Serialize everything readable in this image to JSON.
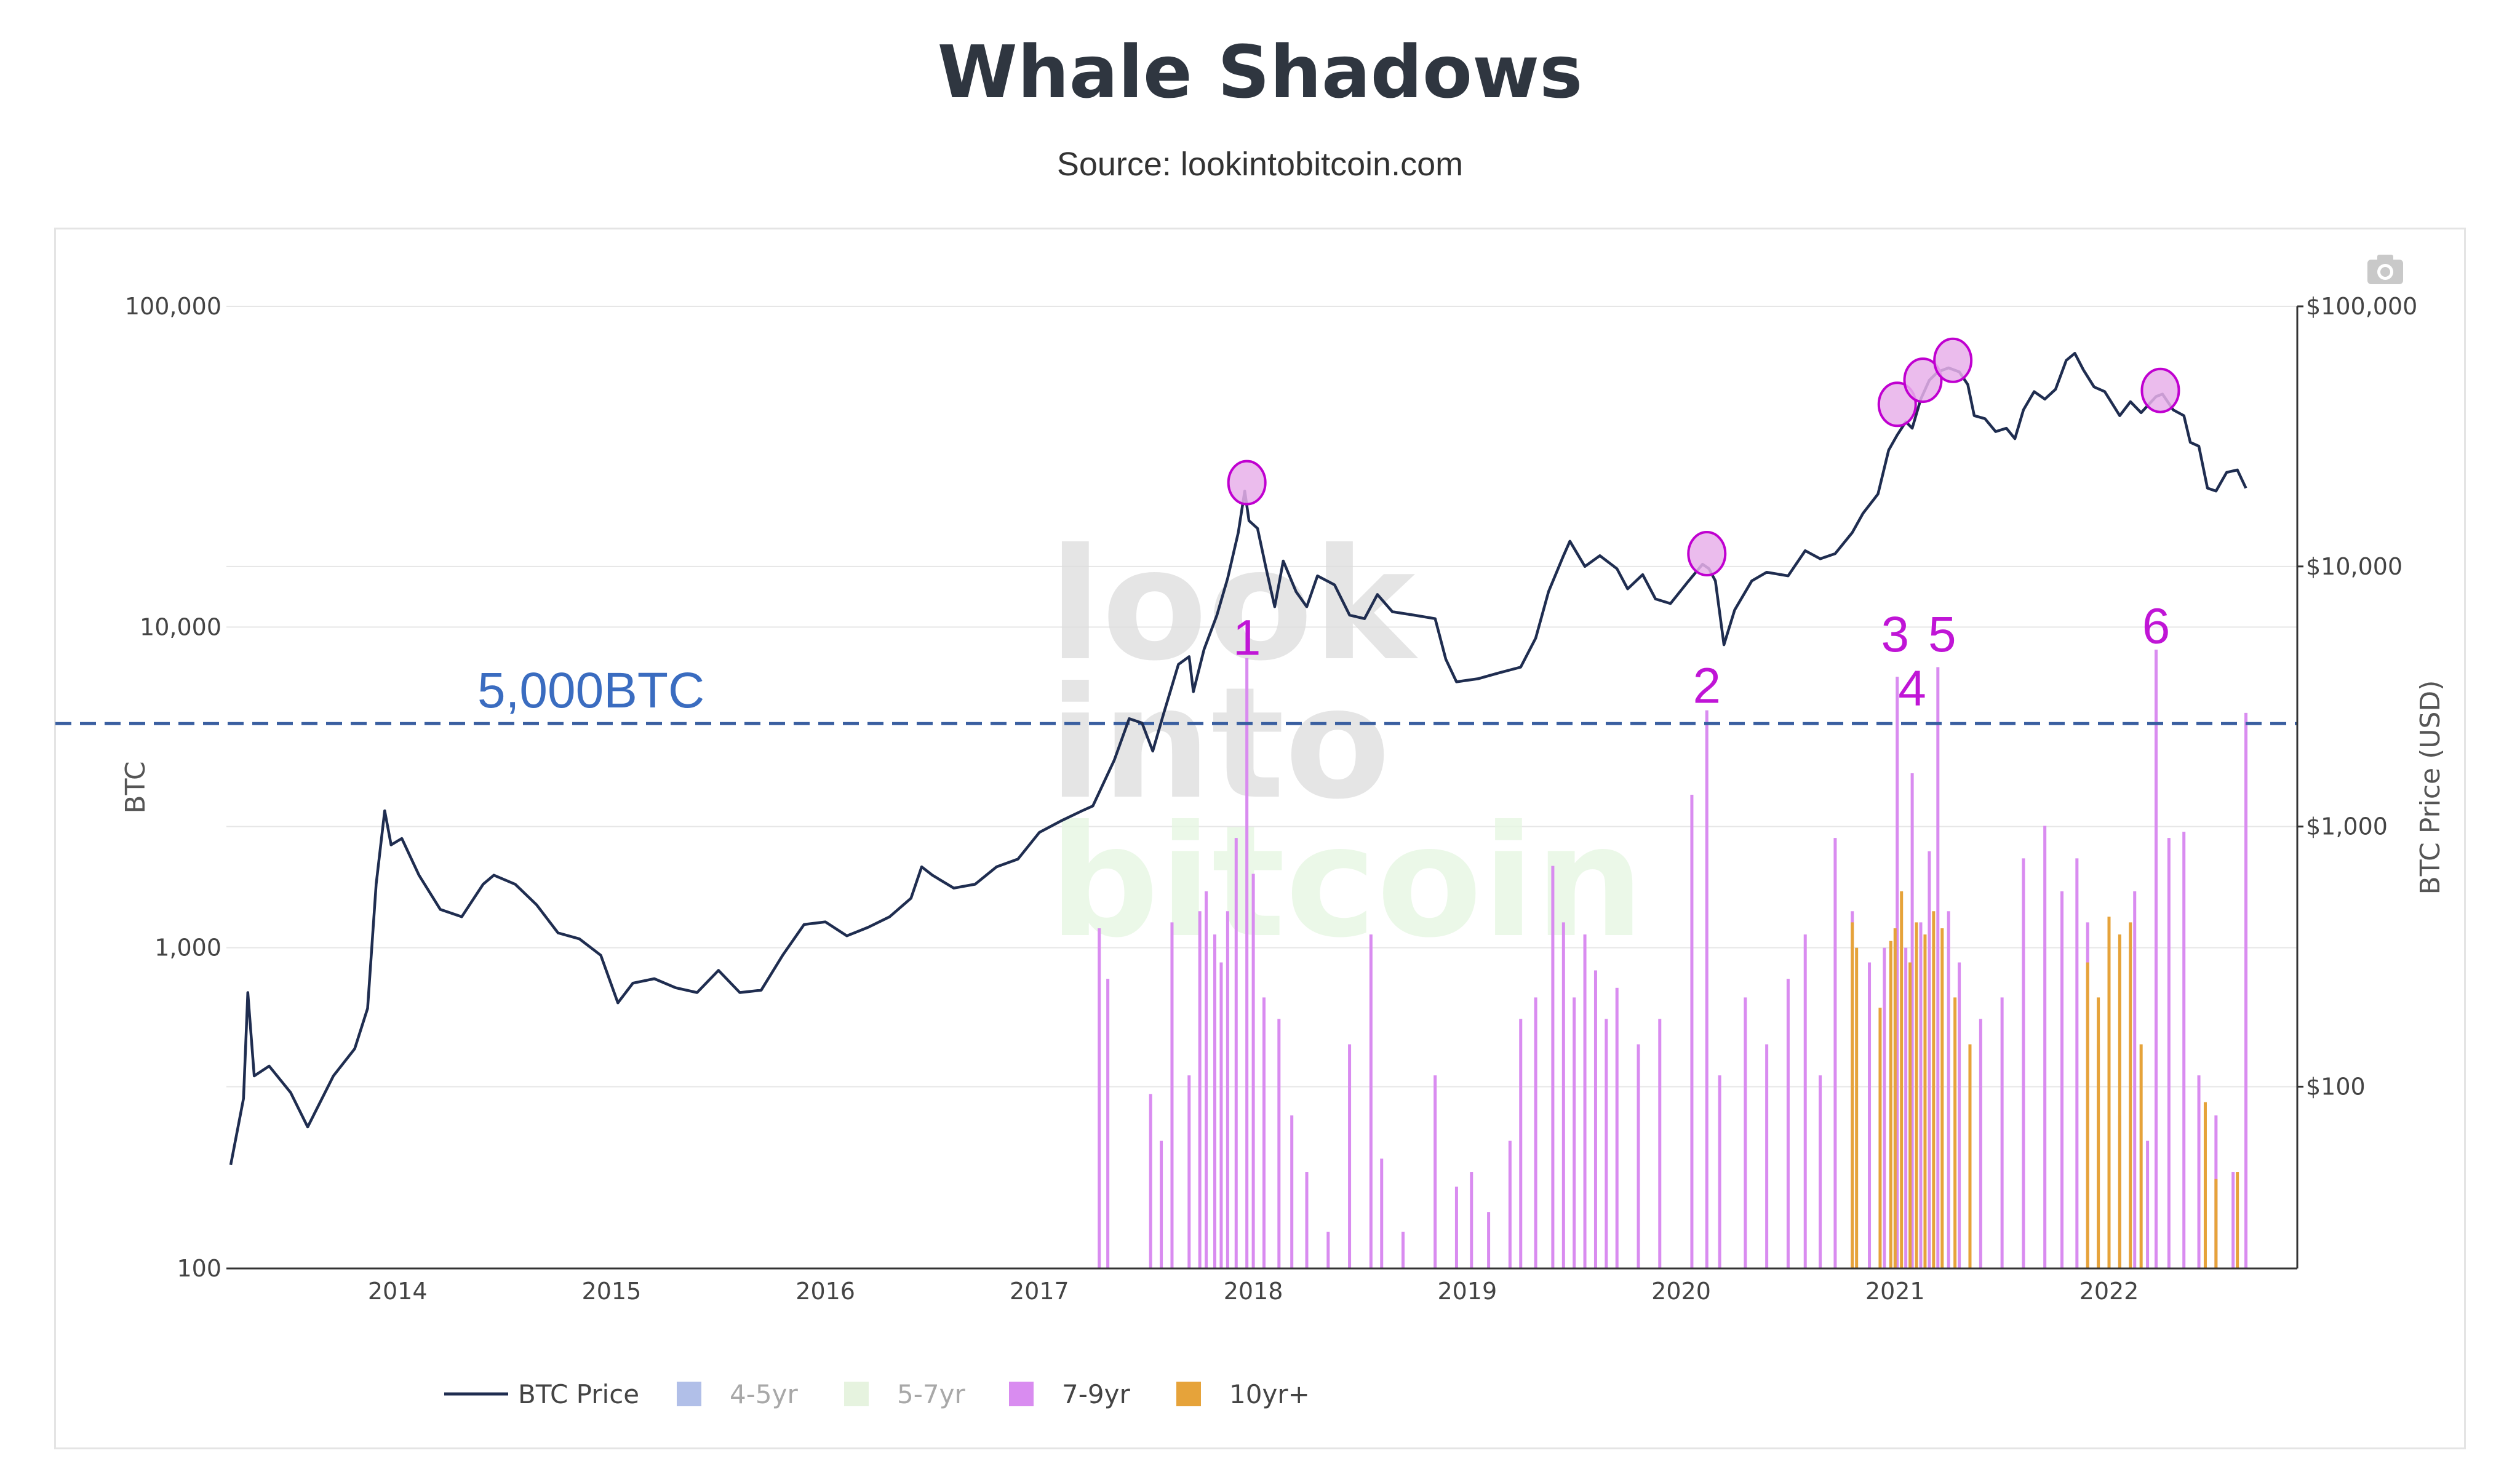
{
  "title": "Whale Shadows",
  "subtitle": "Source: lookintobitcoin.com",
  "colors": {
    "price_line": "#1f2d50",
    "threshold": "#3a5fa0",
    "s45": "#9fb1e3",
    "s57": "#e3f2dc",
    "s79": "#d98cf0",
    "s10": "#e6a33a",
    "marker": "#c000d0",
    "marker_fill": "#e8b0ea",
    "grid": "#e6e6e6",
    "axis": "#333333"
  },
  "icons": {
    "camera": "camera-icon"
  },
  "watermark": [
    "look",
    "into",
    "bitcoin"
  ],
  "chart_data": {
    "type": "line",
    "title": "Whale Shadows",
    "subtitle": "Source: lookintobitcoin.com",
    "y_left": {
      "label": "BTC",
      "scale": "log",
      "range": [
        100,
        100000
      ],
      "ticks": [
        {
          "v": 100,
          "label": "100"
        },
        {
          "v": 1000,
          "label": "1,000"
        },
        {
          "v": 10000,
          "label": "10,000"
        },
        {
          "v": 100000,
          "label": "100,000"
        }
      ]
    },
    "y_right": {
      "label": "BTC Price (USD)",
      "scale": "log",
      "range": [
        20,
        100000
      ],
      "ticks": [
        {
          "v": 100,
          "label": "$100"
        },
        {
          "v": 1000,
          "label": "$1,000"
        },
        {
          "v": 10000,
          "label": "$10,000"
        },
        {
          "v": 100000,
          "label": "$100,000"
        }
      ]
    },
    "x_axis": {
      "range": [
        2013.2,
        2022.88
      ],
      "ticks": [
        {
          "v": 2014,
          "label": "2014"
        },
        {
          "v": 2015,
          "label": "2015"
        },
        {
          "v": 2016,
          "label": "2016"
        },
        {
          "v": 2017,
          "label": "2017"
        },
        {
          "v": 2018,
          "label": "2018"
        },
        {
          "v": 2019,
          "label": "2019"
        },
        {
          "v": 2020,
          "label": "2020"
        },
        {
          "v": 2021,
          "label": "2021"
        },
        {
          "v": 2022,
          "label": "2022"
        }
      ]
    },
    "threshold": {
      "value": 5000,
      "label": "5,000BTC"
    },
    "legend": {
      "placement": "bottom",
      "items": [
        {
          "label": "BTC Price",
          "kind": "line",
          "color": "#1f2d50",
          "active": true
        },
        {
          "label": "4-5yr",
          "kind": "box",
          "color": "#a9b8e6",
          "active": false
        },
        {
          "label": "5-7yr",
          "kind": "box",
          "color": "#e3f2dc",
          "active": false
        },
        {
          "label": "7-9yr",
          "kind": "box",
          "color": "#d98cf0",
          "active": true
        },
        {
          "label": "10yr+",
          "kind": "box",
          "color": "#e6a33a",
          "active": true
        }
      ]
    },
    "series": [
      {
        "name": "BTC Price",
        "axis": "right",
        "points": [
          [
            2013.22,
            50
          ],
          [
            2013.28,
            90
          ],
          [
            2013.3,
            230
          ],
          [
            2013.33,
            110
          ],
          [
            2013.4,
            120
          ],
          [
            2013.5,
            95
          ],
          [
            2013.58,
            70
          ],
          [
            2013.7,
            110
          ],
          [
            2013.8,
            140
          ],
          [
            2013.86,
            200
          ],
          [
            2013.9,
            600
          ],
          [
            2013.94,
            1150
          ],
          [
            2013.97,
            850
          ],
          [
            2014.02,
            900
          ],
          [
            2014.1,
            650
          ],
          [
            2014.2,
            480
          ],
          [
            2014.3,
            450
          ],
          [
            2014.4,
            600
          ],
          [
            2014.45,
            650
          ],
          [
            2014.55,
            600
          ],
          [
            2014.65,
            500
          ],
          [
            2014.75,
            390
          ],
          [
            2014.85,
            370
          ],
          [
            2014.95,
            320
          ],
          [
            2015.03,
            210
          ],
          [
            2015.1,
            250
          ],
          [
            2015.2,
            260
          ],
          [
            2015.3,
            240
          ],
          [
            2015.4,
            230
          ],
          [
            2015.5,
            280
          ],
          [
            2015.6,
            230
          ],
          [
            2015.7,
            235
          ],
          [
            2015.8,
            320
          ],
          [
            2015.9,
            420
          ],
          [
            2016.0,
            430
          ],
          [
            2016.1,
            380
          ],
          [
            2016.2,
            410
          ],
          [
            2016.3,
            450
          ],
          [
            2016.4,
            530
          ],
          [
            2016.45,
            700
          ],
          [
            2016.5,
            650
          ],
          [
            2016.6,
            580
          ],
          [
            2016.7,
            600
          ],
          [
            2016.8,
            700
          ],
          [
            2016.9,
            750
          ],
          [
            2017.0,
            950
          ],
          [
            2017.1,
            1050
          ],
          [
            2017.2,
            1150
          ],
          [
            2017.25,
            1200
          ],
          [
            2017.35,
            1800
          ],
          [
            2017.42,
            2600
          ],
          [
            2017.48,
            2500
          ],
          [
            2017.53,
            1950
          ],
          [
            2017.58,
            2700
          ],
          [
            2017.65,
            4200
          ],
          [
            2017.7,
            4500
          ],
          [
            2017.72,
            3300
          ],
          [
            2017.77,
            4800
          ],
          [
            2017.83,
            6500
          ],
          [
            2017.88,
            9000
          ],
          [
            2017.93,
            13500
          ],
          [
            2017.96,
            19500
          ],
          [
            2017.98,
            15000
          ],
          [
            2018.02,
            14000
          ],
          [
            2018.06,
            9800
          ],
          [
            2018.1,
            7000
          ],
          [
            2018.14,
            10500
          ],
          [
            2018.2,
            8000
          ],
          [
            2018.25,
            7000
          ],
          [
            2018.3,
            9200
          ],
          [
            2018.38,
            8500
          ],
          [
            2018.45,
            6500
          ],
          [
            2018.52,
            6300
          ],
          [
            2018.58,
            7800
          ],
          [
            2018.65,
            6700
          ],
          [
            2018.75,
            6500
          ],
          [
            2018.85,
            6300
          ],
          [
            2018.9,
            4400
          ],
          [
            2018.95,
            3600
          ],
          [
            2019.05,
            3700
          ],
          [
            2019.15,
            3900
          ],
          [
            2019.25,
            4100
          ],
          [
            2019.32,
            5300
          ],
          [
            2019.38,
            8000
          ],
          [
            2019.45,
            11000
          ],
          [
            2019.48,
            12500
          ],
          [
            2019.55,
            10000
          ],
          [
            2019.62,
            11000
          ],
          [
            2019.7,
            9800
          ],
          [
            2019.75,
            8200
          ],
          [
            2019.82,
            9300
          ],
          [
            2019.88,
            7500
          ],
          [
            2019.95,
            7200
          ],
          [
            2020.03,
            8700
          ],
          [
            2020.1,
            10200
          ],
          [
            2020.13,
            9800
          ],
          [
            2020.16,
            8800
          ],
          [
            2020.2,
            5000
          ],
          [
            2020.25,
            6800
          ],
          [
            2020.33,
            8800
          ],
          [
            2020.4,
            9500
          ],
          [
            2020.5,
            9200
          ],
          [
            2020.58,
            11500
          ],
          [
            2020.65,
            10700
          ],
          [
            2020.72,
            11200
          ],
          [
            2020.8,
            13500
          ],
          [
            2020.85,
            16000
          ],
          [
            2020.92,
            19000
          ],
          [
            2020.97,
            28000
          ],
          [
            2021.01,
            32000
          ],
          [
            2021.05,
            36000
          ],
          [
            2021.08,
            34000
          ],
          [
            2021.12,
            44000
          ],
          [
            2021.16,
            52000
          ],
          [
            2021.2,
            56000
          ],
          [
            2021.25,
            58000
          ],
          [
            2021.3,
            56000
          ],
          [
            2021.34,
            50000
          ],
          [
            2021.37,
            38000
          ],
          [
            2021.42,
            37000
          ],
          [
            2021.47,
            33000
          ],
          [
            2021.52,
            34000
          ],
          [
            2021.56,
            31000
          ],
          [
            2021.6,
            40000
          ],
          [
            2021.65,
            47000
          ],
          [
            2021.7,
            44000
          ],
          [
            2021.75,
            48000
          ],
          [
            2021.8,
            62000
          ],
          [
            2021.84,
            66000
          ],
          [
            2021.88,
            57000
          ],
          [
            2021.93,
            49000
          ],
          [
            2021.98,
            47000
          ],
          [
            2022.05,
            38000
          ],
          [
            2022.1,
            43000
          ],
          [
            2022.15,
            39000
          ],
          [
            2022.22,
            45000
          ],
          [
            2022.25,
            46000
          ],
          [
            2022.3,
            40000
          ],
          [
            2022.35,
            38000
          ],
          [
            2022.38,
            30000
          ],
          [
            2022.42,
            29000
          ],
          [
            2022.46,
            20000
          ],
          [
            2022.5,
            19500
          ],
          [
            2022.55,
            23000
          ],
          [
            2022.6,
            23500
          ],
          [
            2022.64,
            20000
          ]
        ]
      },
      {
        "name": "7-9yr",
        "axis": "left",
        "bars": [
          [
            2017.28,
            1150
          ],
          [
            2017.32,
            800
          ],
          [
            2017.52,
            350
          ],
          [
            2017.57,
            250
          ],
          [
            2017.62,
            1200
          ],
          [
            2017.7,
            400
          ],
          [
            2017.75,
            1300
          ],
          [
            2017.78,
            1500
          ],
          [
            2017.82,
            1100
          ],
          [
            2017.85,
            900
          ],
          [
            2017.88,
            1300
          ],
          [
            2017.92,
            2200
          ],
          [
            2017.97,
            8000
          ],
          [
            2018.0,
            1700
          ],
          [
            2018.05,
            700
          ],
          [
            2018.12,
            600
          ],
          [
            2018.18,
            300
          ],
          [
            2018.25,
            200
          ],
          [
            2018.35,
            130
          ],
          [
            2018.45,
            500
          ],
          [
            2018.55,
            1100
          ],
          [
            2018.6,
            220
          ],
          [
            2018.7,
            130
          ],
          [
            2018.85,
            400
          ],
          [
            2018.95,
            180
          ],
          [
            2019.02,
            200
          ],
          [
            2019.1,
            150
          ],
          [
            2019.2,
            250
          ],
          [
            2019.25,
            600
          ],
          [
            2019.32,
            700
          ],
          [
            2019.4,
            1800
          ],
          [
            2019.45,
            1200
          ],
          [
            2019.5,
            700
          ],
          [
            2019.55,
            1100
          ],
          [
            2019.6,
            850
          ],
          [
            2019.65,
            600
          ],
          [
            2019.7,
            750
          ],
          [
            2019.8,
            500
          ],
          [
            2019.9,
            600
          ],
          [
            2020.05,
            3000
          ],
          [
            2020.12,
            5500
          ],
          [
            2020.18,
            400
          ],
          [
            2020.3,
            700
          ],
          [
            2020.4,
            500
          ],
          [
            2020.5,
            800
          ],
          [
            2020.58,
            1100
          ],
          [
            2020.65,
            400
          ],
          [
            2020.72,
            2200
          ],
          [
            2020.8,
            1300
          ],
          [
            2020.88,
            900
          ],
          [
            2020.95,
            1000
          ],
          [
            2021.01,
            7000
          ],
          [
            2021.05,
            1000
          ],
          [
            2021.08,
            3500
          ],
          [
            2021.12,
            1200
          ],
          [
            2021.16,
            2000
          ],
          [
            2021.2,
            7500
          ],
          [
            2021.25,
            1300
          ],
          [
            2021.3,
            900
          ],
          [
            2021.4,
            600
          ],
          [
            2021.5,
            700
          ],
          [
            2021.6,
            1900
          ],
          [
            2021.7,
            2400
          ],
          [
            2021.78,
            1500
          ],
          [
            2021.85,
            1900
          ],
          [
            2021.9,
            1200
          ],
          [
            2021.95,
            500
          ],
          [
            2022.05,
            300
          ],
          [
            2022.12,
            1500
          ],
          [
            2022.18,
            250
          ],
          [
            2022.22,
            8500
          ],
          [
            2022.28,
            2200
          ],
          [
            2022.35,
            2300
          ],
          [
            2022.42,
            400
          ],
          [
            2022.5,
            300
          ],
          [
            2022.58,
            200
          ],
          [
            2022.64,
            5400
          ]
        ]
      },
      {
        "name": "10yr+",
        "axis": "left",
        "bars": [
          [
            2020.8,
            1200
          ],
          [
            2020.82,
            1000
          ],
          [
            2020.93,
            650
          ],
          [
            2020.98,
            1050
          ],
          [
            2021.0,
            1150
          ],
          [
            2021.03,
            1500
          ],
          [
            2021.07,
            900
          ],
          [
            2021.1,
            1200
          ],
          [
            2021.14,
            1100
          ],
          [
            2021.18,
            1300
          ],
          [
            2021.22,
            1150
          ],
          [
            2021.28,
            700
          ],
          [
            2021.35,
            500
          ],
          [
            2021.9,
            900
          ],
          [
            2021.95,
            700
          ],
          [
            2022.0,
            1250
          ],
          [
            2022.05,
            1100
          ],
          [
            2022.1,
            1200
          ],
          [
            2022.15,
            500
          ],
          [
            2022.45,
            330
          ],
          [
            2022.5,
            190
          ],
          [
            2022.6,
            200
          ]
        ]
      }
    ],
    "annotations": [
      {
        "label": "1",
        "x": 2017.97,
        "y": 8200
      },
      {
        "label": "2",
        "x": 2020.12,
        "y": 5800
      },
      {
        "label": "3",
        "x": 2021.0,
        "y": 8400
      },
      {
        "label": "4",
        "x": 2021.08,
        "y": 5700
      },
      {
        "label": "5",
        "x": 2021.22,
        "y": 8400
      },
      {
        "label": "6",
        "x": 2022.22,
        "y": 8900
      }
    ],
    "circles": [
      {
        "x": 2017.97,
        "price": 21000
      },
      {
        "x": 2020.12,
        "price": 11200
      },
      {
        "x": 2021.01,
        "price": 42000
      },
      {
        "x": 2021.13,
        "price": 52000
      },
      {
        "x": 2021.27,
        "price": 62000
      },
      {
        "x": 2022.24,
        "price": 47500
      }
    ]
  }
}
